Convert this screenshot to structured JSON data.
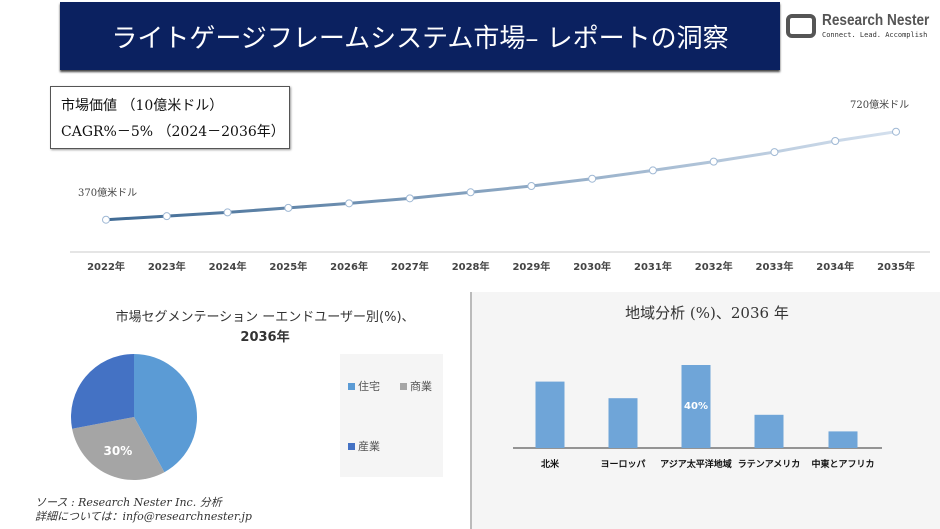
{
  "header": {
    "title": "ライトゲージフレームシステム市場– レポートの洞察",
    "logo_name": "Research Nester",
    "logo_tagline": "Connect. Lead. Accomplish"
  },
  "market_box": {
    "line1": "市場価値 （10億米ドル）",
    "line2": "CAGR%－5% （2024－2036年）"
  },
  "chart_data": [
    {
      "type": "line",
      "x": [
        "2022年",
        "2023年",
        "2024年",
        "2025年",
        "2026年",
        "2027年",
        "2028年",
        "2029年",
        "2030年",
        "2031年",
        "2032年",
        "2033年",
        "2034年",
        "2035年"
      ],
      "values": [
        370,
        384,
        399,
        417,
        435,
        455,
        479,
        504,
        533,
        566,
        601,
        639,
        683,
        720
      ],
      "unit": "億米ドル",
      "annotations": {
        "start": "370億米ドル",
        "end": "720億米ドル"
      },
      "grid": false,
      "colors": {
        "start": "#3f6a94",
        "end": "#d4e0ee"
      }
    },
    {
      "type": "pie",
      "title": "市場セグメンテーション ーエンドユーザー別(%)、",
      "title2": "2036年",
      "categories": [
        "住宅",
        "商業",
        "産業"
      ],
      "values": [
        42,
        30,
        28
      ],
      "data_labels": [
        "",
        "30%",
        ""
      ],
      "colors": [
        "#5b9bd5",
        "#a5a5a5",
        "#4472c4"
      ],
      "legend": "right"
    },
    {
      "type": "bar",
      "title": "地域分析 (%)、2036 年",
      "categories": [
        "北米",
        "ヨーロッパ",
        "アジア太平洋地域",
        "ラテンアメリカ",
        "中東とアフリカ"
      ],
      "values": [
        32,
        24,
        40,
        16,
        8
      ],
      "data_labels": [
        "",
        "",
        "40%",
        "",
        ""
      ],
      "color": "#6fa5d8"
    }
  ],
  "footer": {
    "source": "ソース : Research Nester Inc. 分析",
    "contact": "詳細については：info@researchnester.jp"
  }
}
